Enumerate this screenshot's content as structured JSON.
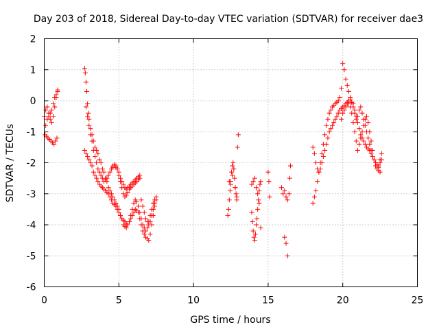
{
  "chart_data": {
    "type": "scatter",
    "title": "Day 203 of 2018, Sidereal Day-to-day VTEC variation (SDTVAR) for receiver dae3",
    "xlabel": "GPS time / hours",
    "ylabel": "SDTVAR / TECUs",
    "xlim": [
      0,
      25
    ],
    "ylim": [
      -6,
      2
    ],
    "xticks": [
      "0",
      "5",
      "10",
      "15",
      "20",
      "25"
    ],
    "yticks": [
      "2",
      "1",
      "0",
      "-1",
      "-2",
      "-3",
      "-4",
      "-5",
      "-6"
    ],
    "xtick_values": [
      0,
      5,
      10,
      15,
      20,
      25
    ],
    "ytick_values": [
      2,
      1,
      0,
      -1,
      -2,
      -3,
      -4,
      -5,
      -6
    ],
    "grid": true,
    "marker": "+",
    "color": "#ff0000",
    "series": [
      {
        "name": "SDTVAR dae3",
        "x": [
          0.0,
          0.1,
          0.2,
          0.3,
          0.4,
          0.5,
          0.6,
          0.7,
          0.8,
          0.9,
          0.05,
          0.15,
          0.25,
          0.35,
          0.45,
          0.55,
          0.65,
          0.75,
          0.85,
          0.1,
          0.2,
          0.3,
          0.4,
          0.5,
          0.6,
          0.7,
          0.8,
          0.9,
          2.7,
          2.75,
          2.8,
          2.85,
          2.9,
          2.95,
          3.0,
          3.1,
          3.2,
          3.3,
          3.4,
          3.5,
          3.6,
          3.7,
          3.8,
          3.9,
          4.0,
          4.1,
          4.2,
          4.3,
          4.4,
          4.5,
          4.6,
          4.7,
          4.8,
          4.9,
          5.0,
          5.1,
          5.2,
          5.3,
          5.4,
          5.5,
          5.6,
          5.7,
          5.8,
          5.9,
          6.0,
          6.1,
          6.2,
          6.3,
          6.4,
          6.5,
          6.6,
          6.7,
          6.8,
          6.9,
          7.0,
          7.1,
          7.2,
          7.3,
          7.4,
          2.7,
          2.8,
          2.9,
          3.0,
          3.1,
          3.2,
          3.3,
          3.4,
          3.5,
          3.6,
          3.7,
          3.8,
          3.9,
          4.0,
          4.1,
          4.2,
          4.3,
          4.4,
          4.5,
          4.6,
          4.7,
          4.8,
          4.9,
          5.0,
          5.1,
          5.2,
          5.3,
          5.4,
          5.5,
          5.6,
          5.7,
          5.8,
          5.9,
          6.0,
          6.1,
          6.2,
          6.3,
          6.4,
          6.5,
          6.6,
          6.7,
          6.8,
          6.9,
          7.0,
          7.1,
          7.2,
          7.3,
          7.4,
          7.5,
          2.8,
          2.9,
          3.0,
          3.1,
          3.2,
          3.3,
          3.4,
          3.5,
          3.6,
          3.7,
          3.8,
          3.9,
          4.0,
          4.1,
          4.2,
          4.3,
          4.4,
          4.5,
          4.6,
          4.7,
          4.8,
          4.9,
          5.0,
          5.1,
          5.2,
          5.3,
          5.4,
          5.5,
          5.6,
          5.7,
          5.8,
          5.9,
          6.0,
          6.1,
          6.2,
          6.3,
          6.4,
          4.6,
          4.7,
          4.8,
          4.9,
          5.0,
          5.1,
          5.2,
          5.3,
          5.4,
          5.5,
          5.6,
          5.7,
          5.8,
          5.9,
          6.0,
          6.1,
          6.2,
          6.3,
          6.4,
          6.5,
          6.6,
          6.7,
          6.8,
          6.9,
          7.0,
          7.1,
          7.2,
          7.3,
          7.4,
          7.5,
          12.3,
          12.35,
          12.4,
          12.45,
          12.5,
          12.55,
          12.6,
          12.65,
          12.7,
          12.75,
          12.8,
          12.85,
          12.9,
          12.95,
          13.0,
          12.4,
          12.5,
          12.6,
          12.7,
          12.8,
          12.9,
          13.9,
          13.95,
          14.0,
          14.05,
          14.1,
          14.15,
          14.2,
          14.25,
          14.3,
          14.35,
          14.4,
          14.45,
          14.5,
          13.9,
          14.0,
          14.1,
          14.2,
          14.3,
          14.4,
          14.5,
          15.0,
          15.05,
          15.1,
          15.9,
          16.0,
          16.1,
          16.2,
          16.3,
          16.4,
          16.45,
          16.5,
          16.1,
          16.2,
          16.3,
          18.0,
          18.1,
          18.2,
          18.3,
          18.4,
          18.5,
          18.6,
          18.7,
          18.8,
          18.9,
          19.0,
          19.1,
          19.2,
          19.3,
          19.4,
          19.5,
          19.6,
          19.7,
          19.8,
          19.9,
          20.0,
          20.1,
          20.2,
          20.3,
          20.4,
          20.5,
          20.6,
          20.7,
          20.8,
          20.9,
          21.0,
          21.1,
          21.2,
          21.3,
          21.4,
          21.5,
          21.6,
          21.7,
          21.8,
          21.9,
          22.0,
          22.1,
          22.2,
          22.3,
          22.4,
          22.5,
          22.6,
          18.0,
          18.1,
          18.2,
          18.3,
          18.4,
          18.5,
          18.6,
          18.7,
          18.8,
          18.9,
          19.0,
          19.1,
          19.2,
          19.3,
          19.4,
          19.5,
          19.6,
          19.7,
          19.8,
          19.9,
          20.0,
          20.1,
          20.2,
          20.3,
          20.4,
          20.5,
          20.6,
          20.7,
          20.8,
          20.9,
          21.0,
          21.1,
          21.2,
          21.3,
          21.4,
          21.5,
          21.6,
          21.7,
          21.8,
          21.9,
          22.0,
          22.1,
          22.2,
          22.3,
          22.4,
          22.5,
          19.9,
          20.0,
          20.1,
          20.2,
          20.3,
          20.4,
          20.5,
          20.6,
          20.7,
          20.8,
          20.9,
          21.0,
          21.1,
          21.2,
          21.3,
          21.4,
          21.5,
          21.6,
          21.7,
          21.8,
          21.9,
          22.0,
          22.1,
          22.2,
          22.3,
          22.4,
          22.5,
          22.6
        ],
        "y": [
          -0.5,
          -0.3,
          -0.2,
          -0.4,
          -0.6,
          -0.7,
          -0.5,
          -0.2,
          0.1,
          0.3,
          -1.1,
          -1.15,
          -1.2,
          -1.25,
          -1.3,
          -1.35,
          -1.4,
          -1.3,
          -1.2,
          -0.8,
          -0.6,
          -0.5,
          -0.4,
          -0.3,
          -0.1,
          0.1,
          0.2,
          0.35,
          1.05,
          0.9,
          0.6,
          0.3,
          -0.1,
          -0.4,
          -0.6,
          -0.9,
          -1.1,
          -1.3,
          -1.5,
          -1.6,
          -1.7,
          -1.9,
          -2.0,
          -2.2,
          -2.3,
          -2.5,
          -2.6,
          -2.8,
          -2.9,
          -3.0,
          -3.1,
          -3.2,
          -3.3,
          -3.4,
          -3.5,
          -3.7,
          -3.8,
          -4.0,
          -4.05,
          -4.1,
          -4.0,
          -3.9,
          -3.8,
          -3.7,
          -3.6,
          -3.5,
          -3.55,
          -3.6,
          -3.8,
          -4.0,
          -4.2,
          -4.3,
          -4.4,
          -4.45,
          -4.5,
          -4.3,
          -4.0,
          -3.7,
          -3.4,
          -1.6,
          -1.7,
          -1.8,
          -1.9,
          -2.0,
          -2.1,
          -2.3,
          -2.4,
          -2.5,
          -2.6,
          -2.7,
          -2.75,
          -2.8,
          -2.85,
          -2.9,
          -2.95,
          -3.0,
          -3.1,
          -3.2,
          -3.3,
          -3.35,
          -3.4,
          -3.5,
          -3.6,
          -3.7,
          -3.8,
          -3.85,
          -3.9,
          -3.95,
          -4.0,
          -3.9,
          -3.7,
          -3.5,
          -3.3,
          -3.2,
          -3.25,
          -3.4,
          -3.6,
          -3.8,
          -4.0,
          -4.1,
          -4.2,
          -4.1,
          -3.9,
          -3.7,
          -3.5,
          -3.3,
          -3.2,
          -3.1,
          -0.2,
          -0.5,
          -0.8,
          -1.1,
          -1.3,
          -1.6,
          -1.8,
          -2.0,
          -2.2,
          -2.3,
          -2.4,
          -2.5,
          -2.6,
          -2.55,
          -2.5,
          -2.4,
          -2.3,
          -2.2,
          -2.15,
          -2.1,
          -2.15,
          -2.2,
          -2.4,
          -2.6,
          -2.8,
          -3.0,
          -3.1,
          -3.05,
          -2.95,
          -2.85,
          -2.8,
          -2.75,
          -2.7,
          -2.65,
          -2.6,
          -2.55,
          -2.5,
          -2.1,
          -2.05,
          -2.1,
          -2.2,
          -2.3,
          -2.5,
          -2.6,
          -2.7,
          -2.8,
          -2.85,
          -2.8,
          -2.75,
          -2.7,
          -2.65,
          -2.6,
          -2.55,
          -2.5,
          -2.45,
          -2.4,
          -3.2,
          -3.4,
          -3.6,
          -3.8,
          -3.9,
          -4.0,
          -3.9,
          -3.7,
          -3.5,
          -3.3,
          -3.2,
          -3.7,
          -3.5,
          -3.2,
          -2.9,
          -2.6,
          -2.3,
          -2.1,
          -2.0,
          -2.2,
          -2.5,
          -2.8,
          -3.0,
          -3.1,
          -1.5,
          -1.1,
          -2.6,
          -2.7,
          -2.4,
          -2.2,
          -2.8,
          -3.2,
          -3.6,
          -3.9,
          -4.2,
          -4.4,
          -4.5,
          -4.3,
          -4.0,
          -3.8,
          -3.5,
          -3.2,
          -2.9,
          -2.7,
          -2.6,
          -2.7,
          -2.6,
          -2.5,
          -2.8,
          -3.0,
          -3.3,
          -4.1,
          -2.3,
          -2.6,
          -3.1,
          -2.8,
          -3.0,
          -2.9,
          -3.1,
          -3.2,
          -3.0,
          -2.5,
          -2.1,
          -4.4,
          -4.6,
          -5.0,
          -3.3,
          -3.1,
          -2.9,
          -2.6,
          -2.3,
          -2.0,
          -1.7,
          -1.4,
          -1.1,
          -0.8,
          -0.6,
          -0.4,
          -0.3,
          -0.2,
          -0.15,
          -0.1,
          -0.05,
          0.0,
          0.1,
          0.4,
          1.2,
          1.0,
          0.7,
          0.5,
          0.3,
          0.1,
          -0.05,
          -0.1,
          -0.3,
          -0.5,
          -0.7,
          -0.9,
          -1.1,
          -1.2,
          -1.3,
          -1.4,
          -1.5,
          -1.55,
          -1.6,
          -1.7,
          -1.8,
          -1.9,
          -2.0,
          -2.05,
          -2.1,
          -2.0,
          -1.9,
          -1.5,
          -1.7,
          -2.0,
          -2.2,
          -2.3,
          -2.2,
          -2.0,
          -1.8,
          -1.6,
          -1.4,
          -1.2,
          -1.0,
          -0.9,
          -0.8,
          -0.7,
          -0.6,
          -0.5,
          -0.4,
          -0.3,
          -0.25,
          -0.2,
          -0.15,
          -0.1,
          -0.05,
          -0.1,
          -0.2,
          -0.4,
          -0.7,
          -1.0,
          -1.3,
          -1.6,
          -1.4,
          -1.2,
          -1.0,
          -0.8,
          -0.6,
          -0.5,
          -0.7,
          -1.0,
          -1.3,
          -1.6,
          -1.9,
          -2.1,
          -2.2,
          -2.25,
          -2.3,
          -0.6,
          -0.4,
          -0.3,
          -0.2,
          -0.1,
          0.0,
          0.05,
          -0.05,
          -0.2,
          -0.4,
          -0.6,
          -0.5,
          -0.3,
          -0.2,
          -0.4,
          -0.6,
          -0.8,
          -1.0,
          -1.2,
          -1.4,
          -1.6,
          -1.8,
          -1.9,
          -2.0,
          -2.1,
          -2.15,
          -1.9,
          -1.7
        ]
      }
    ]
  }
}
